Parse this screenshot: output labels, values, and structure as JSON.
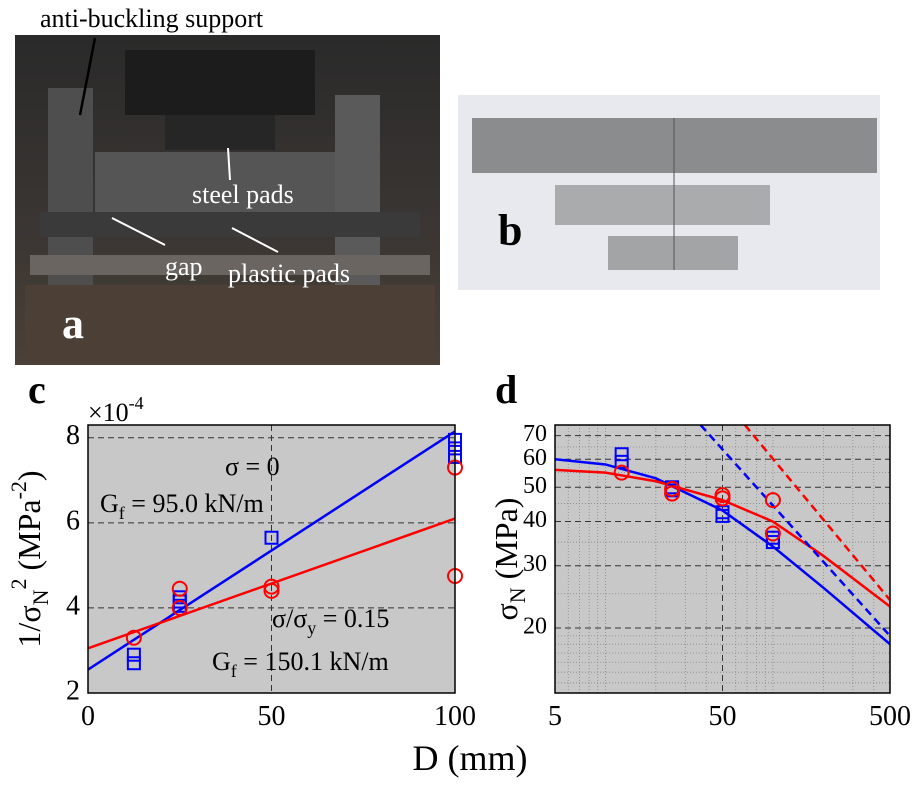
{
  "photo_a": {
    "label": "a",
    "annotations": [
      "anti-buckling support",
      "steel pads",
      "gap",
      "plastic pads"
    ]
  },
  "photo_b": {
    "label": "b"
  },
  "chart_data": [
    {
      "type": "scatter",
      "panel_label": "c",
      "xlim": [
        0,
        100
      ],
      "ylim": [
        2,
        8.3
      ],
      "xticks": [
        0,
        50,
        100
      ],
      "yticks": [
        2,
        4,
        6,
        8
      ],
      "y_multiplier": [
        "×10",
        "-4"
      ],
      "ylabel": [
        "1/σ",
        "N",
        "2",
        " (MPa",
        "-2",
        ")"
      ],
      "xlabel": "D (mm)",
      "grid": true,
      "background": "#c8c8c8",
      "series": [
        {
          "kind": "line",
          "color": "#0000ff",
          "x": [
            0,
            100
          ],
          "values": [
            2.55,
            8.15
          ]
        },
        {
          "kind": "line",
          "color": "#ff0000",
          "x": [
            0,
            100
          ],
          "values": [
            3.05,
            6.1
          ]
        },
        {
          "kind": "scatter",
          "marker": "square",
          "color": "#0000ff",
          "x": [
            12.5,
            12.5,
            25,
            25,
            25,
            50,
            100,
            100,
            100
          ],
          "values": [
            2.7,
            2.9,
            4.05,
            4.15,
            4.25,
            5.65,
            7.55,
            7.75,
            7.95
          ]
        },
        {
          "kind": "scatter",
          "marker": "circle",
          "color": "#ff0000",
          "x": [
            12.5,
            25,
            25,
            50,
            50,
            100,
            100
          ],
          "values": [
            3.3,
            4.0,
            4.45,
            4.4,
            4.5,
            7.3,
            4.75
          ]
        }
      ],
      "annotations": [
        {
          "parts": [
            "σ = 0"
          ]
        },
        {
          "parts": [
            "G",
            "f",
            " = 95.0 kN/m"
          ]
        },
        {
          "parts": [
            "σ/σ",
            "y",
            " = 0.15"
          ]
        },
        {
          "parts": [
            "G",
            "f",
            " = 150.1 kN/m"
          ]
        }
      ]
    },
    {
      "type": "scatter",
      "log": true,
      "panel_label": "d",
      "xlim": [
        5,
        500
      ],
      "ylim": [
        13.1,
        75
      ],
      "xticks": [
        5,
        50,
        500
      ],
      "yticks": [
        20,
        30,
        40,
        50,
        60,
        70
      ],
      "xminor": [
        6,
        7,
        8,
        9,
        10,
        20,
        30,
        40,
        60,
        70,
        80,
        90,
        100,
        200,
        300,
        400
      ],
      "yminor": [
        14,
        15,
        16,
        17,
        18,
        19,
        25,
        35,
        45,
        55,
        65
      ],
      "ylabel": [
        "σ",
        "N",
        " (MPa)"
      ],
      "grid": true,
      "background": "#c8c8c8",
      "series": [
        {
          "kind": "line",
          "color": "#0000ff",
          "x": [
            5,
            10,
            20,
            50,
            100,
            200,
            500
          ],
          "values": [
            60,
            58,
            53,
            43,
            34,
            26,
            18
          ]
        },
        {
          "kind": "line",
          "color": "#ff0000",
          "x": [
            5,
            10,
            20,
            50,
            100,
            200,
            500
          ],
          "values": [
            56,
            55,
            52,
            46,
            40,
            32,
            23
          ]
        },
        {
          "kind": "line",
          "dash": true,
          "color": "#0000ff",
          "x": [
            37,
            500
          ],
          "values": [
            75,
            19
          ]
        },
        {
          "kind": "line",
          "dash": true,
          "color": "#ff0000",
          "x": [
            68,
            500
          ],
          "values": [
            75,
            24
          ]
        },
        {
          "kind": "scatter",
          "marker": "square",
          "color": "#0000ff",
          "x": [
            12.5,
            12.5,
            25,
            25,
            50,
            50,
            100,
            100
          ],
          "values": [
            62,
            59,
            50,
            49,
            42.5,
            41.5,
            36,
            35
          ]
        },
        {
          "kind": "scatter",
          "marker": "circle",
          "color": "#ff0000",
          "x": [
            12.5,
            25,
            25,
            50,
            50,
            100,
            100
          ],
          "values": [
            55,
            48,
            49.5,
            47.5,
            46.5,
            46,
            37
          ]
        }
      ]
    }
  ]
}
